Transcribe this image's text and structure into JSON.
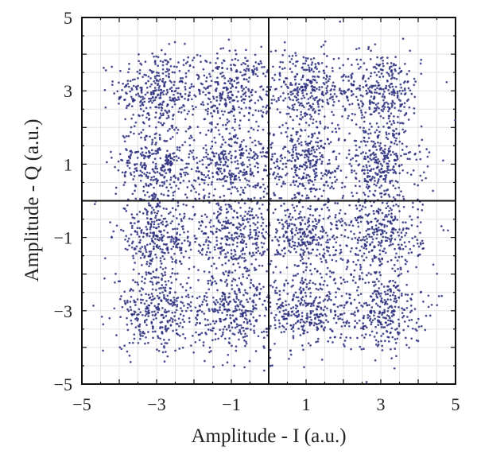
{
  "chart_data": {
    "type": "scatter",
    "title": "",
    "xlabel": "Amplitude - I (a.u.)",
    "ylabel": "Amplitude - Q (a.u.)",
    "xlim": [
      -5,
      5
    ],
    "ylim": [
      -5,
      5
    ],
    "xticks": [
      -5,
      -3,
      -1,
      1,
      3,
      5
    ],
    "yticks": [
      5,
      3,
      1,
      -1,
      -3,
      -5
    ],
    "xtick_labels": [
      "−5",
      "−3",
      "−1",
      "1",
      "3",
      "5"
    ],
    "ytick_labels": [
      "5",
      "3",
      "1",
      "−1",
      "−3",
      "−5"
    ],
    "grid": true,
    "axes_through_origin": true,
    "legend": "none",
    "marker_color": "#2b2f7e",
    "constellation": "16-QAM",
    "cluster_centers": [
      [
        -3,
        3
      ],
      [
        -1,
        3
      ],
      [
        1,
        3
      ],
      [
        3,
        3
      ],
      [
        -3,
        1
      ],
      [
        -1,
        1
      ],
      [
        1,
        1
      ],
      [
        3,
        1
      ],
      [
        -3,
        -1
      ],
      [
        -1,
        -1
      ],
      [
        1,
        -1
      ],
      [
        3,
        -1
      ],
      [
        -3,
        -3
      ],
      [
        -1,
        -3
      ],
      [
        1,
        -3
      ],
      [
        3,
        -3
      ]
    ],
    "cluster_spread": 0.55,
    "points_per_cluster": 330
  }
}
